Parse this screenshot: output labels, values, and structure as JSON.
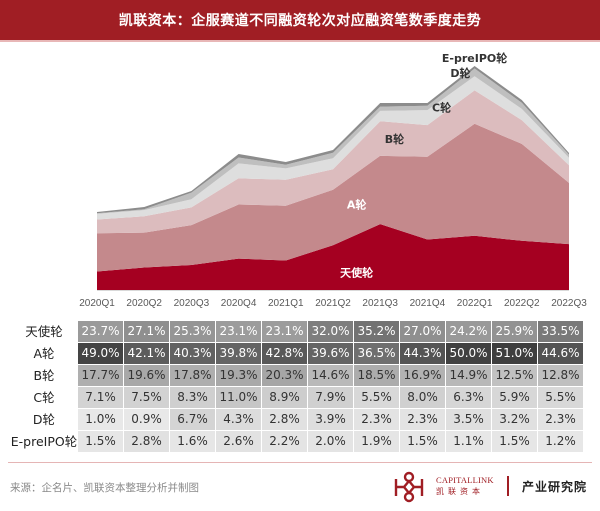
{
  "header": {
    "title": "凯联资本：企服赛道不同融资轮次对应融资笔数季度走势"
  },
  "chart_data": {
    "type": "area",
    "stacked": true,
    "title": "凯联资本：企服赛道不同融资轮次对应融资笔数季度走势",
    "xlabel": "",
    "ylabel": "",
    "y_axis_shown": false,
    "grid": false,
    "categories": [
      "2020Q1",
      "2020Q2",
      "2020Q3",
      "2020Q4",
      "2021Q1",
      "2021Q2",
      "2021Q3",
      "2021Q4",
      "2022Q1",
      "2022Q2",
      "2022Q3"
    ],
    "relative_total_estimate": [
      78,
      83,
      99,
      136,
      128,
      140,
      187,
      187,
      224,
      190,
      137
    ],
    "series": [
      {
        "name": "天使轮",
        "color": "#a50021",
        "label_color": "#ffffff",
        "share_pct": [
          23.7,
          27.1,
          25.3,
          23.1,
          23.1,
          32.0,
          35.2,
          27.0,
          24.2,
          25.9,
          33.5
        ]
      },
      {
        "name": "A轮",
        "color": "#c4898c",
        "label_color": "#ffffff",
        "share_pct": [
          49.0,
          42.1,
          40.3,
          39.8,
          42.8,
          39.6,
          36.5,
          44.3,
          50.0,
          51.0,
          44.6
        ]
      },
      {
        "name": "B轮",
        "color": "#dcbcbe",
        "label_color": "#333333",
        "share_pct": [
          17.7,
          19.6,
          17.8,
          19.3,
          20.3,
          14.6,
          18.5,
          16.9,
          14.9,
          12.5,
          12.8
        ]
      },
      {
        "name": "C轮",
        "color": "#dedede",
        "label_color": "#333333",
        "share_pct": [
          7.1,
          7.5,
          8.3,
          11.0,
          8.9,
          7.9,
          5.5,
          8.0,
          6.3,
          5.9,
          5.5
        ]
      },
      {
        "name": "D轮",
        "color": "#bfbfbf",
        "label_color": "#333333",
        "share_pct": [
          1.0,
          0.9,
          6.7,
          4.3,
          2.8,
          3.9,
          2.3,
          2.3,
          3.5,
          3.2,
          2.3
        ]
      },
      {
        "name": "E-preIPO轮",
        "color": "#8c8c8c",
        "label_color": "#333333",
        "share_pct": [
          1.5,
          2.8,
          1.6,
          2.6,
          2.2,
          2.0,
          1.9,
          1.5,
          1.1,
          1.5,
          1.2
        ]
      }
    ],
    "series_label_anchor": [
      "2021Q2",
      "2021Q2",
      "2021Q3",
      "2021Q4",
      "2022Q1",
      "2022Q1"
    ]
  },
  "table": {
    "rows": [
      {
        "label": "天使轮",
        "values": [
          "23.7%",
          "27.1%",
          "25.3%",
          "23.1%",
          "23.1%",
          "32.0%",
          "35.2%",
          "27.0%",
          "24.2%",
          "25.9%",
          "33.5%"
        ]
      },
      {
        "label": "A轮",
        "values": [
          "49.0%",
          "42.1%",
          "40.3%",
          "39.8%",
          "42.8%",
          "39.6%",
          "36.5%",
          "44.3%",
          "50.0%",
          "51.0%",
          "44.6%"
        ]
      },
      {
        "label": "B轮",
        "values": [
          "17.7%",
          "19.6%",
          "17.8%",
          "19.3%",
          "20.3%",
          "14.6%",
          "18.5%",
          "16.9%",
          "14.9%",
          "12.5%",
          "12.8%"
        ]
      },
      {
        "label": "C轮",
        "values": [
          "7.1%",
          "7.5%",
          "8.3%",
          "11.0%",
          "8.9%",
          "7.9%",
          "5.5%",
          "8.0%",
          "6.3%",
          "5.9%",
          "5.5%"
        ]
      },
      {
        "label": "D轮",
        "values": [
          "1.0%",
          "0.9%",
          "6.7%",
          "4.3%",
          "2.8%",
          "3.9%",
          "2.3%",
          "2.3%",
          "3.5%",
          "3.2%",
          "2.3%"
        ]
      },
      {
        "label": "E-preIPO轮",
        "values": [
          "1.5%",
          "2.8%",
          "1.6%",
          "2.6%",
          "2.2%",
          "2.0%",
          "1.9%",
          "1.5%",
          "1.1%",
          "1.5%",
          "1.2%"
        ]
      }
    ]
  },
  "footer": {
    "source": "来源：企名片、凯联资本整理分析并制图",
    "brand_en": "CAPITALLINK",
    "brand_cn": "凯联资本",
    "dept": "产业研究院",
    "logo_icon": "capitallink-logo-icon"
  }
}
